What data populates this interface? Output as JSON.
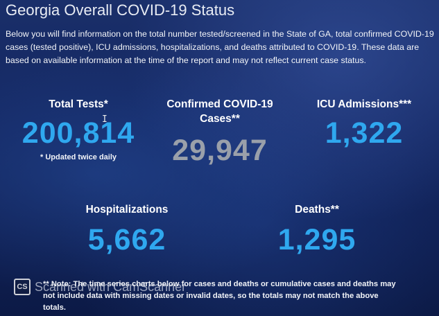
{
  "page": {
    "title": "Georgia Overall COVID-19 Status",
    "intro": "Below you will find information on the total number tested/screened in the State of GA, total confirmed COVID-19 cases (tested positive), ICU admissions, hospitalizations, and deaths attributed to COVID-19. These data are based on available information at the time of the report and may not reflect current case status."
  },
  "stats": {
    "tests": {
      "label": "Total Tests*",
      "value": "200,814",
      "note": "* Updated twice daily"
    },
    "cases": {
      "label": "Confirmed COVID-19 Cases**",
      "value": "29,947"
    },
    "icu": {
      "label": "ICU Admissions***",
      "value": "1,322"
    },
    "hospitalizations": {
      "label": "Hospitalizations",
      "value": "5,662"
    },
    "deaths": {
      "label": "Deaths**",
      "value": "1,295"
    }
  },
  "footnote": "** Note: The time series charts below for cases and deaths or cumulative cases and deaths may not include data with missing dates or invalid dates, so the totals may not match the above totals.",
  "watermark": {
    "icon_label": "CS",
    "text": "Scanned with CamScanner"
  },
  "colors": {
    "value_blue": "#2fa8ef",
    "value_gray": "#9aa0aa",
    "background": "#132660"
  },
  "cursor": {
    "icon": "text-cursor-icon",
    "glyph": "I"
  }
}
